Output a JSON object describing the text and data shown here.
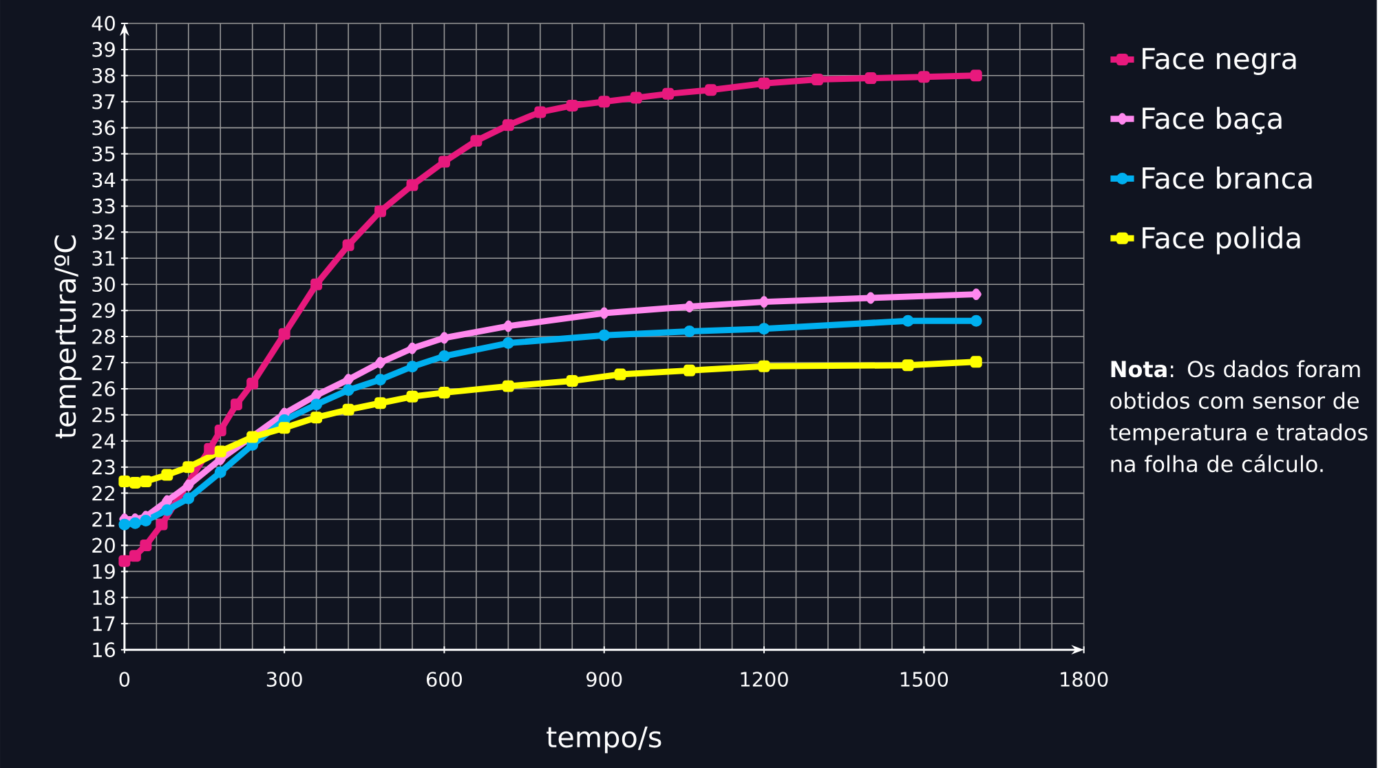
{
  "chart_data": {
    "type": "line",
    "xlabel": "tempo/s",
    "ylabel": "tempertura/ºC",
    "xlim": [
      0,
      1800
    ],
    "ylim": [
      16,
      40
    ],
    "xticks": [
      0,
      {
        "value": 60,
        "label": null
      },
      {
        "value": 120,
        "label": null
      },
      {
        "value": 180,
        "label": null
      },
      {
        "value": 240,
        "label": null
      },
      300,
      {
        "value": 360,
        "label": null
      },
      {
        "value": 420,
        "label": null
      },
      {
        "value": 480,
        "label": null
      },
      {
        "value": 540,
        "label": null
      },
      600,
      {
        "value": 660,
        "label": null
      },
      {
        "value": 720,
        "label": null
      },
      {
        "value": 780,
        "label": null
      },
      {
        "value": 840,
        "label": null
      },
      900,
      {
        "value": 960,
        "label": null
      },
      {
        "value": 1020,
        "label": null
      },
      {
        "value": 1080,
        "label": null
      },
      {
        "value": 1140,
        "label": null
      },
      1200,
      {
        "value": 1260,
        "label": null
      },
      {
        "value": 1320,
        "label": null
      },
      {
        "value": 1380,
        "label": null
      },
      {
        "value": 1440,
        "label": null
      },
      1500,
      {
        "value": 1560,
        "label": null
      },
      {
        "value": 1620,
        "label": null
      },
      {
        "value": 1680,
        "label": null
      },
      {
        "value": 1740,
        "label": null
      },
      1800
    ],
    "yticks": [
      16,
      17,
      18,
      19,
      20,
      21,
      22,
      23,
      24,
      25,
      26,
      27,
      28,
      29,
      30,
      31,
      32,
      33,
      34,
      35,
      36,
      37,
      38,
      39,
      40
    ],
    "grid": true,
    "legend": "right",
    "line_style": "solid",
    "series": [
      {
        "name": "Face negra",
        "color": "#e8197d",
        "marker": "square",
        "x": [
          0,
          20,
          40,
          70,
          160,
          180,
          210,
          240,
          300,
          360,
          420,
          480,
          540,
          600,
          660,
          720,
          780,
          840,
          900,
          960,
          1020,
          1100,
          1200,
          1300,
          1400,
          1500,
          1598
        ],
        "values": [
          19.4,
          19.6,
          20.0,
          20.8,
          23.7,
          24.4,
          25.4,
          26.2,
          28.1,
          30.0,
          31.5,
          32.8,
          33.8,
          34.7,
          35.5,
          36.1,
          36.6,
          36.85,
          37.0,
          37.15,
          37.3,
          37.45,
          37.7,
          37.85,
          37.9,
          37.95,
          38.0
        ]
      },
      {
        "name": "Face baça",
        "color": "#ff88ee",
        "marker": "diamond",
        "x": [
          0,
          20,
          40,
          80,
          120,
          180,
          300,
          360,
          420,
          480,
          540,
          600,
          720,
          900,
          1060,
          1200,
          1400,
          1598
        ],
        "values": [
          21.0,
          21.0,
          21.1,
          21.7,
          22.3,
          23.3,
          25.05,
          25.75,
          26.35,
          27.0,
          27.55,
          27.95,
          28.4,
          28.9,
          29.15,
          29.33,
          29.48,
          29.62
        ]
      },
      {
        "name": "Face branca",
        "color": "#00b0f0",
        "marker": "circle",
        "x": [
          0,
          20,
          40,
          80,
          120,
          180,
          240,
          300,
          360,
          420,
          480,
          540,
          600,
          720,
          900,
          1060,
          1200,
          1470,
          1598
        ],
        "values": [
          20.8,
          20.85,
          20.95,
          21.35,
          21.8,
          22.8,
          23.85,
          24.8,
          25.4,
          25.95,
          26.35,
          26.85,
          27.25,
          27.75,
          28.05,
          28.2,
          28.3,
          28.6,
          28.6
        ]
      },
      {
        "name": "Face polida",
        "color": "#ffff00",
        "marker": "square",
        "x": [
          0,
          20,
          40,
          80,
          120,
          180,
          240,
          300,
          360,
          420,
          480,
          540,
          600,
          720,
          840,
          930,
          1060,
          1200,
          1470,
          1598
        ],
        "values": [
          22.45,
          22.4,
          22.45,
          22.7,
          23.0,
          23.6,
          24.15,
          24.5,
          24.9,
          25.2,
          25.45,
          25.7,
          25.85,
          26.1,
          26.3,
          26.55,
          26.7,
          26.86,
          26.9,
          27.03
        ]
      }
    ],
    "annotations": [
      "**Nota**: Os dados foram obtidos com sensor de temperatura e tratados na folha de cálculo."
    ]
  }
}
